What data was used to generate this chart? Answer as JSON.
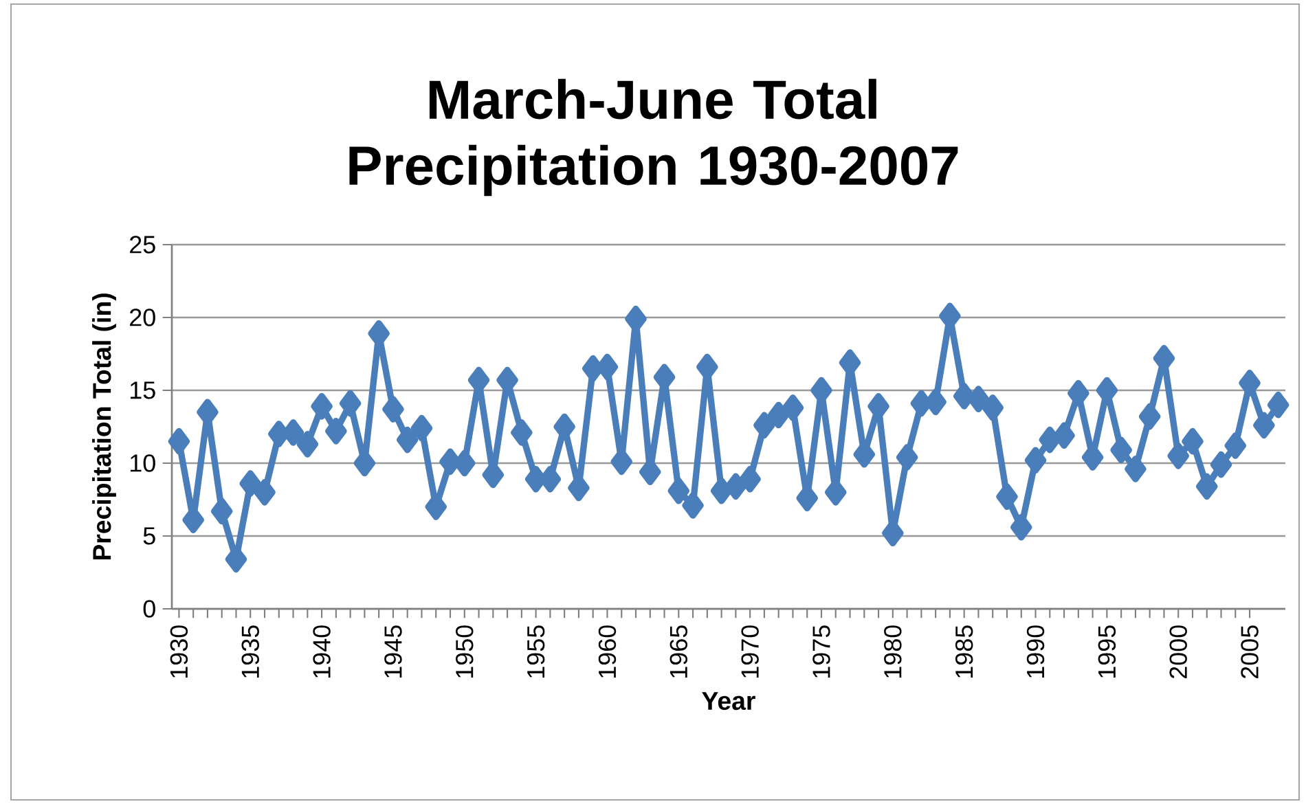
{
  "chart_data": {
    "type": "line",
    "title": "March-June Total Precipitation 1930-2007",
    "xlabel": "Year",
    "ylabel": "Precipitation Total (in)",
    "x": [
      1930,
      1931,
      1932,
      1933,
      1934,
      1935,
      1936,
      1937,
      1938,
      1939,
      1940,
      1941,
      1942,
      1943,
      1944,
      1945,
      1946,
      1947,
      1948,
      1949,
      1950,
      1951,
      1952,
      1953,
      1954,
      1955,
      1956,
      1957,
      1958,
      1959,
      1960,
      1961,
      1962,
      1963,
      1964,
      1965,
      1966,
      1967,
      1968,
      1969,
      1970,
      1971,
      1972,
      1973,
      1974,
      1975,
      1976,
      1977,
      1978,
      1979,
      1980,
      1981,
      1982,
      1983,
      1984,
      1985,
      1986,
      1987,
      1988,
      1989,
      1990,
      1991,
      1992,
      1993,
      1994,
      1995,
      1996,
      1997,
      1998,
      1999,
      2000,
      2001,
      2002,
      2003,
      2004,
      2005,
      2006,
      2007
    ],
    "series": [
      {
        "color": "#4a7ebb",
        "values": [
          11.5,
          6.1,
          13.5,
          6.7,
          3.4,
          8.6,
          8.0,
          12.0,
          12.1,
          11.3,
          13.9,
          12.2,
          14.1,
          10.0,
          18.9,
          13.7,
          11.6,
          12.4,
          7.0,
          10.1,
          10.0,
          15.7,
          9.2,
          15.7,
          12.1,
          8.9,
          8.9,
          12.5,
          8.3,
          16.5,
          16.6,
          10.1,
          19.9,
          9.4,
          15.9,
          8.1,
          7.1,
          16.6,
          8.1,
          8.4,
          8.9,
          12.6,
          13.3,
          13.8,
          7.6,
          15.0,
          8.0,
          16.9,
          10.6,
          13.9,
          5.2,
          10.4,
          14.1,
          14.2,
          20.1,
          14.6,
          14.4,
          13.8,
          7.7,
          5.6,
          10.2,
          11.6,
          11.9,
          14.8,
          10.4,
          15.0,
          10.9,
          9.6,
          13.2,
          17.2,
          10.5,
          11.5,
          8.4,
          9.9,
          11.2,
          15.5,
          12.6,
          14.0
        ]
      }
    ],
    "xlim": [
      1929.5,
      2007.5
    ],
    "xticks": [
      1930,
      1935,
      1940,
      1945,
      1950,
      1955,
      1960,
      1965,
      1970,
      1975,
      1980,
      1985,
      1990,
      1995,
      2000,
      2005
    ],
    "ylim": [
      0,
      25
    ],
    "yticks": [
      0,
      5,
      10,
      15,
      20,
      25
    ],
    "grid": "y",
    "marker": "diamond",
    "line_style": "solid"
  }
}
